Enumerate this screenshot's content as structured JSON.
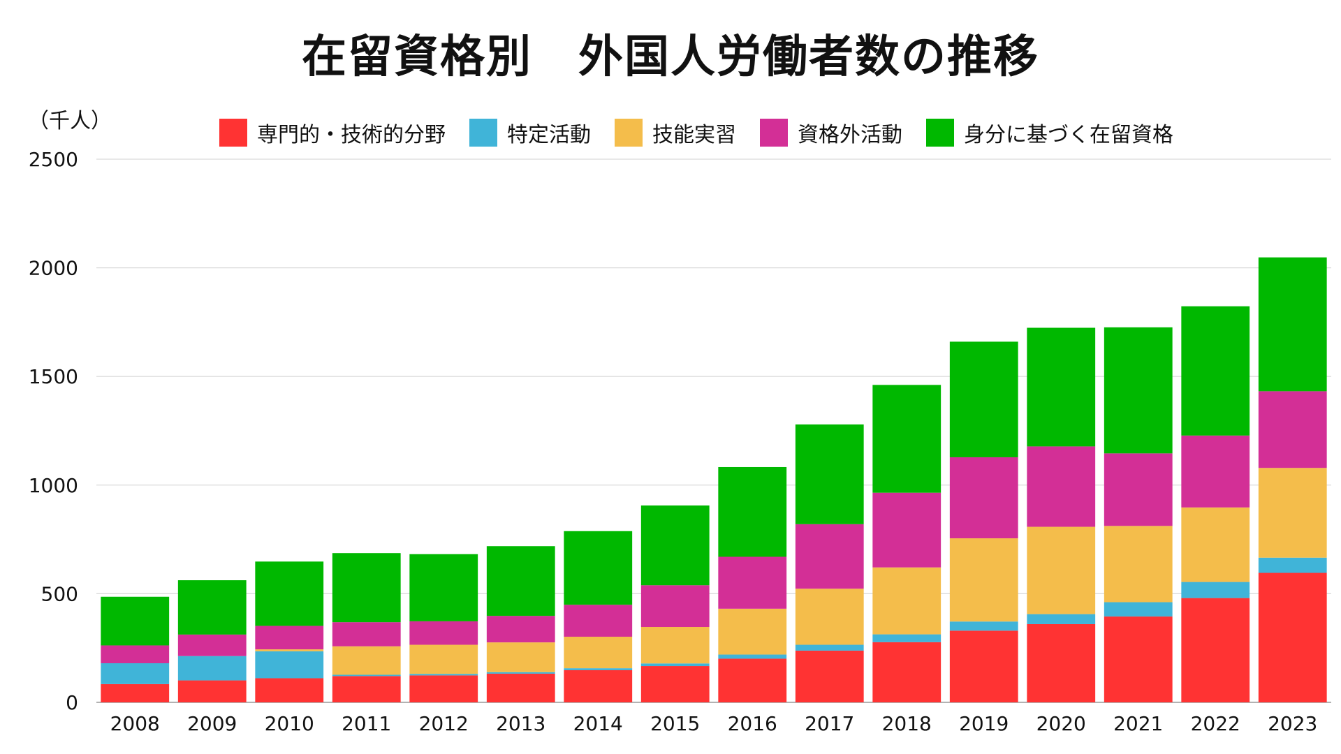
{
  "title": "在留資格別　外国人労働者数の推移",
  "unit_label": "（千人）",
  "legend": [
    {
      "label": "専門的・技術的分野",
      "color": "#ff3333"
    },
    {
      "label": "特定活動",
      "color": "#40b4d8"
    },
    {
      "label": "技能実習",
      "color": "#f4bd4b"
    },
    {
      "label": "資格外活動",
      "color": "#d32f96"
    },
    {
      "label": "身分に基づく在留資格",
      "color": "#00b800"
    }
  ],
  "chart_data": {
    "type": "bar",
    "stacked": true,
    "title": "在留資格別　外国人労働者数の推移",
    "xlabel": "",
    "ylabel": "（千人）",
    "ylim": [
      0,
      2500
    ],
    "yticks": [
      0,
      500,
      1000,
      1500,
      2000,
      2500
    ],
    "grid": true,
    "legend_position": "top",
    "categories": [
      "2008",
      "2009",
      "2010",
      "2011",
      "2012",
      "2013",
      "2014",
      "2015",
      "2016",
      "2017",
      "2018",
      "2019",
      "2020",
      "2021",
      "2022",
      "2023"
    ],
    "series": [
      {
        "name": "専門的・技術的分野",
        "color": "#ff3333",
        "values": [
          84,
          101,
          111,
          121,
          124,
          132,
          148,
          167,
          201,
          238,
          277,
          330,
          360,
          395,
          480,
          596
        ]
      },
      {
        "name": "特定活動",
        "color": "#40b4d8",
        "values": [
          96,
          112,
          124,
          6,
          7,
          7,
          9,
          12,
          19,
          27,
          36,
          42,
          46,
          66,
          74,
          70
        ]
      },
      {
        "name": "技能実習",
        "color": "#f4bd4b",
        "values": [
          0,
          0,
          9,
          131,
          134,
          137,
          145,
          168,
          211,
          258,
          308,
          383,
          402,
          351,
          343,
          413
        ]
      },
      {
        "name": "資格外活動",
        "color": "#d32f96",
        "values": [
          82,
          99,
          108,
          111,
          108,
          122,
          147,
          192,
          239,
          297,
          344,
          373,
          370,
          334,
          331,
          353
        ]
      },
      {
        "name": "身分に基づく在留資格",
        "color": "#00b800",
        "values": [
          224,
          250,
          296,
          318,
          309,
          321,
          339,
          367,
          413,
          459,
          496,
          532,
          546,
          580,
          595,
          616
        ]
      }
    ]
  }
}
